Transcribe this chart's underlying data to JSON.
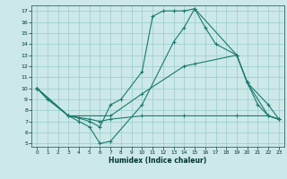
{
  "xlabel": "Humidex (Indice chaleur)",
  "xlim": [
    -0.5,
    23.5
  ],
  "ylim": [
    4.7,
    17.5
  ],
  "xticks": [
    0,
    1,
    2,
    3,
    4,
    5,
    6,
    7,
    8,
    9,
    10,
    11,
    12,
    13,
    14,
    15,
    16,
    17,
    18,
    19,
    20,
    21,
    22,
    23
  ],
  "yticks": [
    5,
    6,
    7,
    8,
    9,
    10,
    11,
    12,
    13,
    14,
    15,
    16,
    17
  ],
  "bg_color": "#cce8e8",
  "line_color": "#1a7a6e",
  "grid_color": "#99cccc",
  "series": [
    {
      "x": [
        0,
        1,
        3,
        4,
        5,
        6,
        7,
        8,
        10,
        11,
        12,
        13,
        14,
        15,
        16,
        17,
        19,
        20,
        22,
        23
      ],
      "y": [
        10,
        9,
        7.5,
        7.3,
        7.0,
        6.5,
        8.5,
        9.0,
        11.5,
        16.5,
        17.0,
        17.0,
        17.0,
        17.2,
        15.5,
        14.0,
        13.0,
        10.5,
        7.5,
        7.2
      ]
    },
    {
      "x": [
        0,
        3,
        4,
        5,
        6,
        7,
        10,
        13,
        14,
        15,
        19,
        20,
        21,
        22,
        23
      ],
      "y": [
        10,
        7.5,
        7.0,
        6.5,
        5.0,
        5.2,
        8.5,
        14.2,
        15.5,
        17.2,
        13.0,
        10.5,
        8.5,
        7.5,
        7.2
      ]
    },
    {
      "x": [
        0,
        3,
        7,
        10,
        14,
        15,
        19,
        20,
        22,
        23
      ],
      "y": [
        10,
        7.5,
        7.5,
        9.5,
        12.0,
        12.2,
        13.0,
        10.5,
        8.5,
        7.2
      ]
    },
    {
      "x": [
        0,
        3,
        5,
        6,
        7,
        10,
        14,
        19,
        22,
        23
      ],
      "y": [
        10,
        7.5,
        7.2,
        7.0,
        7.2,
        7.5,
        7.5,
        7.5,
        7.5,
        7.2
      ]
    }
  ]
}
